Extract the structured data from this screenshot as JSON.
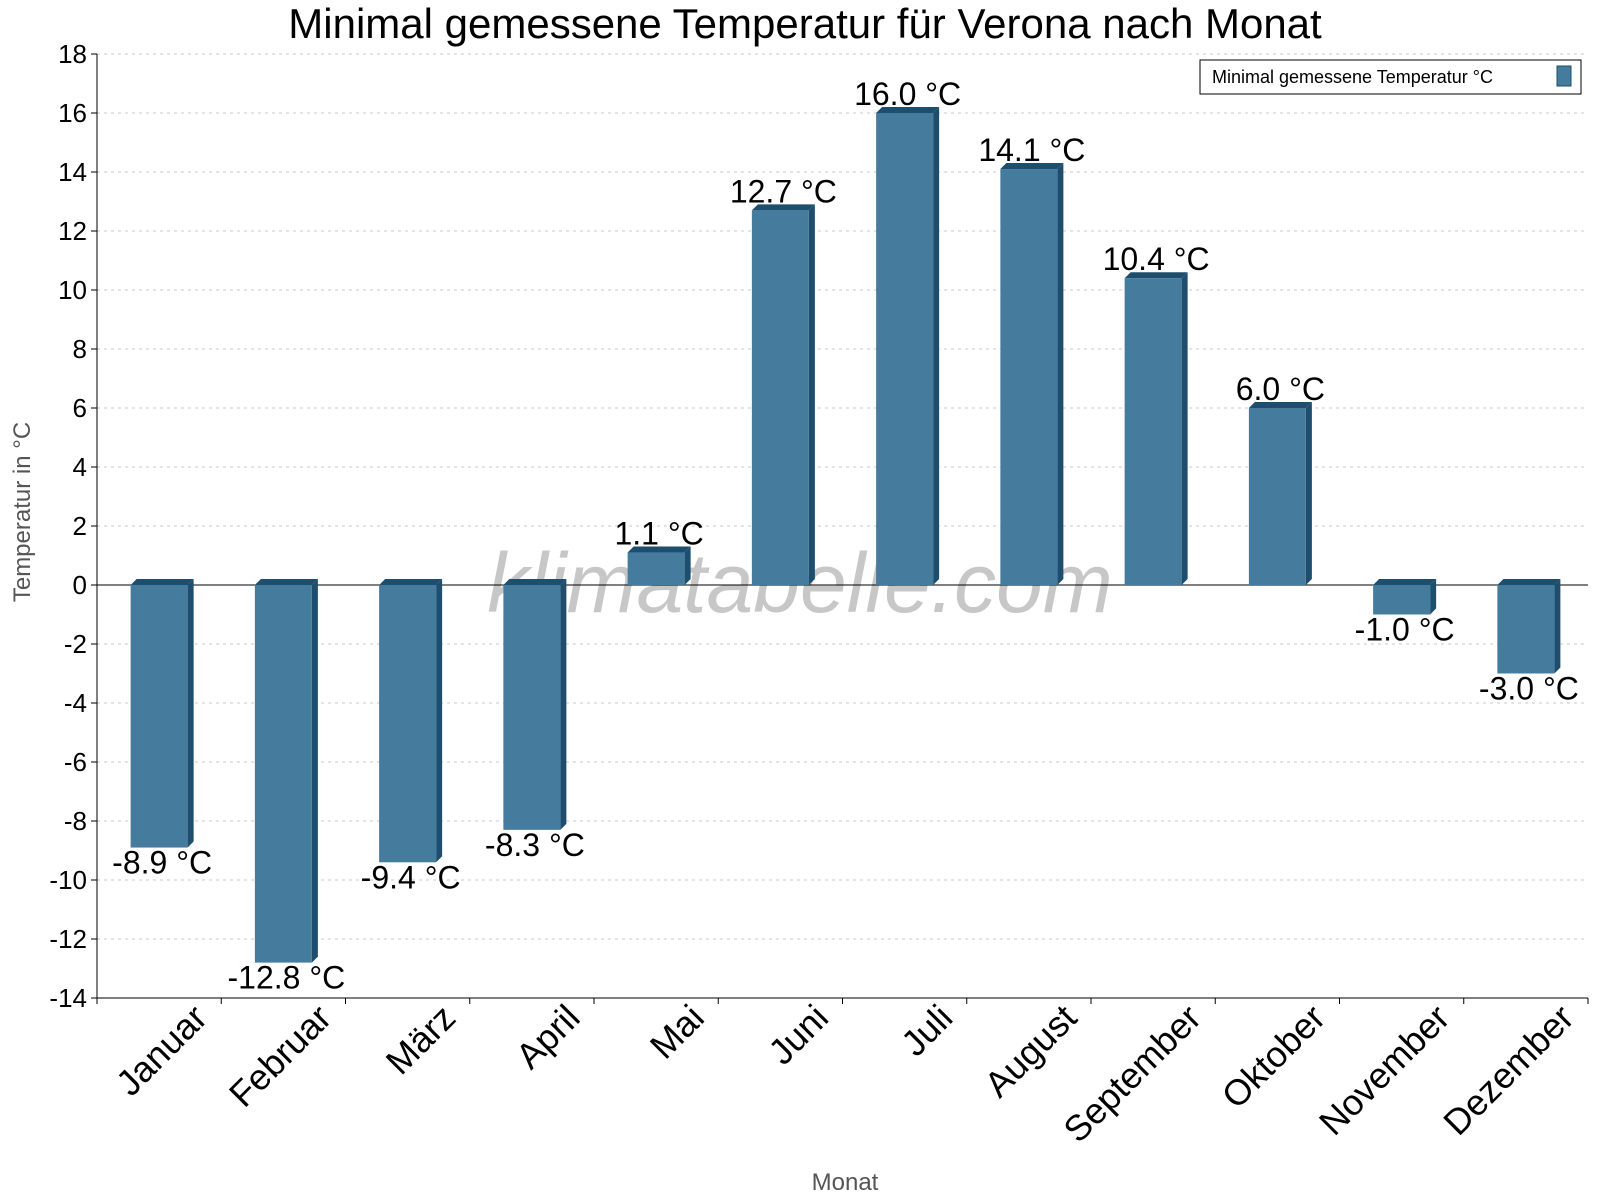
{
  "chart_data": {
    "type": "bar",
    "title": "Minimal gemessene Temperatur für Verona nach Monat",
    "xlabel": "Monat",
    "ylabel": "Temperatur in °C",
    "categories": [
      "Januar",
      "Februar",
      "März",
      "April",
      "Mai",
      "Juni",
      "Juli",
      "August",
      "September",
      "Oktober",
      "November",
      "Dezember"
    ],
    "series": [
      {
        "name": "Minimal gemessene Temperatur °C",
        "values": [
          -8.9,
          -12.8,
          -9.4,
          -8.3,
          1.1,
          12.7,
          16.0,
          14.1,
          10.4,
          6.0,
          -1.0,
          -3.0
        ],
        "labels": [
          "-8.9 °C",
          "-12.8 °C",
          "-9.4 °C",
          "-8.3 °C",
          "1.1 °C",
          "12.7 °C",
          "16.0 °C",
          "14.1 °C",
          "10.4 °C",
          "6.0 °C",
          "-1.0 °C",
          "-3.0 °C"
        ]
      }
    ],
    "ylim": [
      -14,
      18
    ],
    "yticks": [
      "-14",
      "-12",
      "-10",
      "-8",
      "-6",
      "-4",
      "-2",
      "0",
      "2",
      "4",
      "6",
      "8",
      "10",
      "12",
      "14",
      "16",
      "18"
    ],
    "grid": true,
    "legend_position": "top-right"
  },
  "colors": {
    "bar_front": "#457b9d",
    "bar_side": "#1d4e6e",
    "bar_top": "#1d4e6e",
    "grid": "#c8c8c8",
    "axis": "#000000"
  },
  "watermark": "klimatabelle.com"
}
